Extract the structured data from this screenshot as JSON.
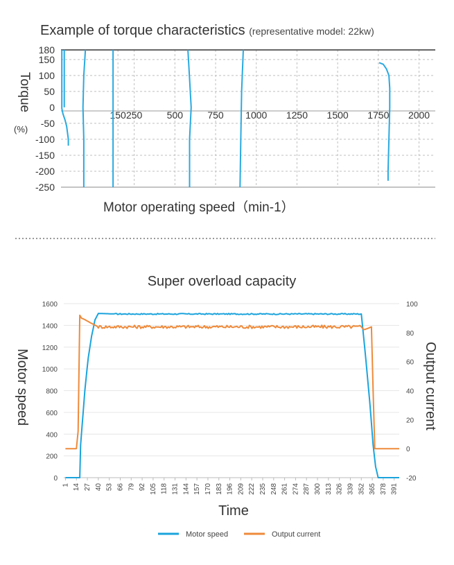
{
  "chart_data": [
    {
      "type": "line",
      "title": "Example of torque characteristics",
      "subtitle": "(representative model: 22kw)",
      "ylabel": "Torque",
      "ylabel_unit": "(%)",
      "xlabel": "Motor operating speed（min-1）",
      "xlim": [
        -200,
        2100
      ],
      "ylim": [
        -250,
        180
      ],
      "x_ticks": [
        150,
        250,
        500,
        750,
        1000,
        1250,
        1500,
        1750,
        2000
      ],
      "y_ticks": [
        180,
        150,
        100,
        50,
        0,
        -50,
        -100,
        -150,
        -200,
        -250
      ],
      "series": [
        {
          "points": [
            [
              -195,
              180
            ],
            [
              -195,
              -3
            ],
            [
              -188,
              -20
            ],
            [
              -175,
              -40
            ],
            [
              -165,
              -60
            ],
            [
              -160,
              -80
            ],
            [
              -155,
              -100
            ],
            [
              -155,
              -120
            ]
          ]
        },
        {
          "points": [
            [
              -180,
              180
            ],
            [
              -180,
              0
            ]
          ]
        },
        {
          "points": [
            [
              -50,
              180
            ],
            [
              -60,
              100
            ],
            [
              -65,
              0
            ],
            [
              -60,
              -100
            ],
            [
              -60,
              -250
            ]
          ]
        },
        {
          "points": [
            [
              120,
              180
            ],
            [
              120,
              -250
            ]
          ]
        },
        {
          "points": [
            [
              580,
              180
            ],
            [
              590,
              90
            ],
            [
              600,
              0
            ],
            [
              590,
              -100
            ],
            [
              590,
              -250
            ]
          ]
        },
        {
          "points": [
            [
              920,
              180
            ],
            [
              910,
              50
            ],
            [
              905,
              -100
            ],
            [
              900,
              -250
            ]
          ]
        },
        {
          "points": [
            [
              1755,
              140
            ],
            [
              1780,
              135
            ],
            [
              1800,
              120
            ],
            [
              1815,
              100
            ],
            [
              1820,
              60
            ],
            [
              1820,
              0
            ],
            [
              1815,
              -100
            ],
            [
              1810,
              -200
            ],
            [
              1810,
              -230
            ]
          ]
        }
      ],
      "grid": true
    },
    {
      "type": "line",
      "title": "Super overload capacity",
      "xlabel": "Time",
      "ylabel": "Motor speed",
      "y2label": "Output current",
      "categories": [
        "1",
        "14",
        "27",
        "40",
        "53",
        "66",
        "79",
        "92",
        "105",
        "118",
        "131",
        "144",
        "157",
        "170",
        "183",
        "196",
        "209",
        "222",
        "235",
        "248",
        "261",
        "274",
        "287",
        "300",
        "313",
        "326",
        "339",
        "352",
        "365",
        "378",
        "391"
      ],
      "ylim": [
        0,
        1600
      ],
      "y_ticks": [
        0,
        200,
        400,
        600,
        800,
        1000,
        1200,
        1400,
        1600
      ],
      "y2lim": [
        -20,
        100
      ],
      "y2_ticks": [
        -20,
        0,
        20,
        40,
        60,
        80,
        100
      ],
      "legend_position": "bottom",
      "series": [
        {
          "name": "Motor speed",
          "color": "#1aa3dc",
          "axis": "left",
          "points": [
            [
              1,
              0
            ],
            [
              18,
              0
            ],
            [
              19,
              300
            ],
            [
              24,
              800
            ],
            [
              28,
              1100
            ],
            [
              32,
              1300
            ],
            [
              36,
              1450
            ],
            [
              40,
              1510
            ],
            [
              60,
              1505
            ],
            [
              100,
              1505
            ],
            [
              140,
              1505
            ],
            [
              180,
              1505
            ],
            [
              220,
              1505
            ],
            [
              260,
              1505
            ],
            [
              300,
              1505
            ],
            [
              340,
              1505
            ],
            [
              352,
              1505
            ],
            [
              356,
              1200
            ],
            [
              362,
              700
            ],
            [
              366,
              300
            ],
            [
              369,
              100
            ],
            [
              372,
              0
            ],
            [
              397,
              0
            ]
          ]
        },
        {
          "name": "Output current",
          "color": "#ee8a3a",
          "axis": "right",
          "points": [
            [
              1,
              0
            ],
            [
              14,
              0
            ],
            [
              16,
              12
            ],
            [
              18,
              92
            ],
            [
              20,
              90
            ],
            [
              24,
              89
            ],
            [
              30,
              87
            ],
            [
              40,
              84
            ],
            [
              80,
              84
            ],
            [
              120,
              84
            ],
            [
              160,
              84
            ],
            [
              200,
              84
            ],
            [
              240,
              84
            ],
            [
              280,
              84
            ],
            [
              320,
              84
            ],
            [
              352,
              84
            ],
            [
              355,
              82
            ],
            [
              360,
              83
            ],
            [
              364,
              84
            ],
            [
              366,
              40
            ],
            [
              368,
              0
            ],
            [
              397,
              0
            ]
          ]
        }
      ]
    }
  ]
}
